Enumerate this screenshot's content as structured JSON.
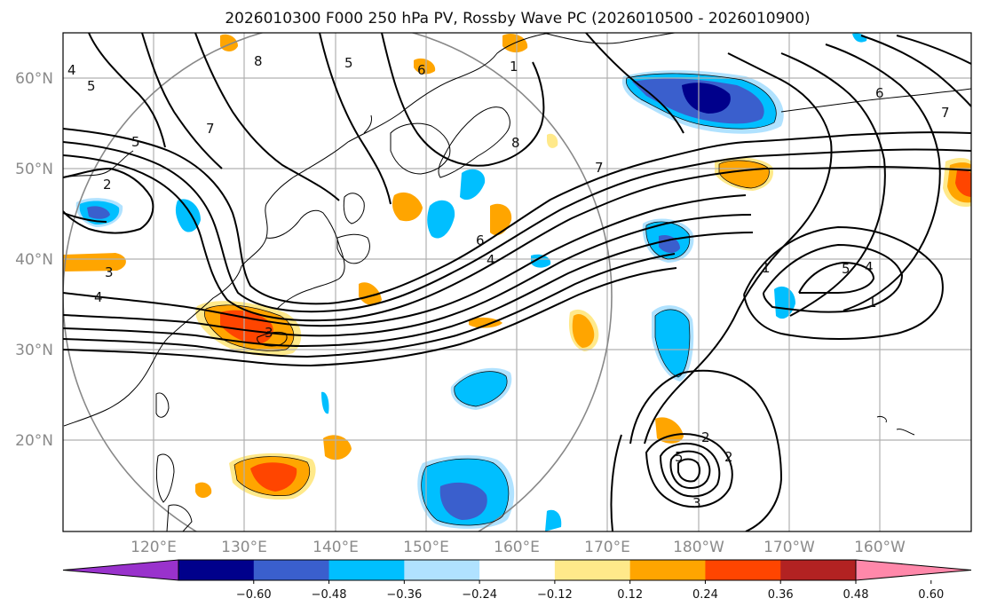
{
  "title": "2026010300 F000 250 hPa PV, Rossby Wave PC (2026010500 - 2026010900)",
  "lat_labels": [
    "60°N",
    "50°N",
    "40°N",
    "30°N",
    "20°N"
  ],
  "lon_labels": [
    "120°E",
    "130°E",
    "140°E",
    "150°E",
    "160°E",
    "170°E",
    "180°W",
    "170°W",
    "160°W"
  ],
  "colorbar": {
    "ticks": [
      "−0.60",
      "−0.48",
      "−0.36",
      "−0.24",
      "−0.12",
      "0.12",
      "0.24",
      "0.36",
      "0.48",
      "0.60"
    ],
    "colors": [
      "#9932cc",
      "#00008b",
      "#3a5fcd",
      "#00bfff",
      "#b0e2ff",
      "#ffffff",
      "#ffe98a",
      "#ffa500",
      "#ff4500",
      "#b22222",
      "#ff88aa"
    ]
  },
  "contour_labels": [
    "5",
    "7",
    "5",
    "2",
    "4",
    "3",
    "6",
    "8",
    "1",
    "5",
    "4",
    "7",
    "6",
    "4",
    "2",
    "3",
    "8",
    "5",
    "4",
    "1",
    "1",
    "6",
    "7",
    "5",
    "2",
    "3"
  ]
}
